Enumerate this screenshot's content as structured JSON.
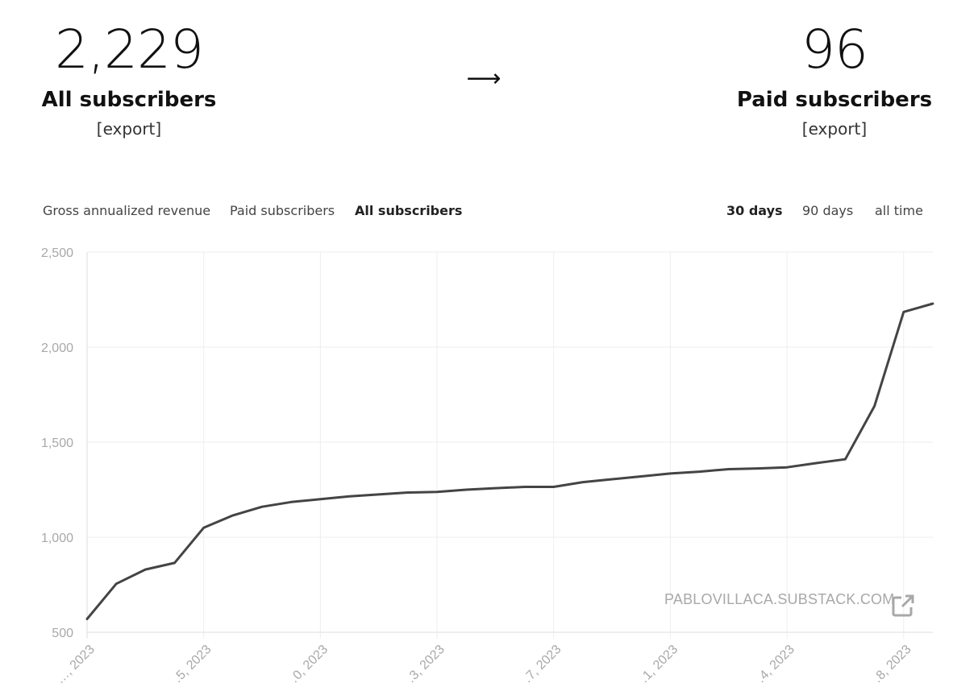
{
  "left_stat": {
    "value": "2,229",
    "label": "All subscribers",
    "export": "[export]"
  },
  "arrow": "⟶",
  "right_stat": {
    "value": "96",
    "label": "Paid subscribers",
    "export": "[export]"
  },
  "metric_tabs": [
    {
      "label": "Gross annualized revenue",
      "active": false
    },
    {
      "label": "Paid subscribers",
      "active": false
    },
    {
      "label": "All subscribers",
      "active": true
    }
  ],
  "range_tabs": [
    {
      "label": "30 days",
      "active": true
    },
    {
      "label": "90 days",
      "active": false
    },
    {
      "label": "all time",
      "active": false
    }
  ],
  "watermark": {
    "text": "PABLOVILLACA.SUBSTACK.COM",
    "icon": "external-link-icon"
  },
  "colors": {
    "line": "#444444",
    "grid": "#eeeeee",
    "axis_text": "#a8a8a8",
    "watermark": "#a8a8a8"
  },
  "chart_data": {
    "type": "line",
    "title": "",
    "xlabel": "",
    "ylabel": "",
    "ylim": [
      500,
      2500
    ],
    "yticks": [
      "500",
      "1,000",
      "1,500",
      "2,000",
      "2,500"
    ],
    "grid": true,
    "x_tick_labels": [
      "…, 2023",
      "…5, 2023",
      "…0, 2023",
      "…3, 2023",
      "…7, 2023",
      "…1, 2023",
      "…4, 2023",
      "…8, 2023"
    ],
    "series": [
      {
        "values": [
          570,
          755,
          830,
          865,
          1050,
          1115,
          1160,
          1185,
          1200,
          1215,
          1225,
          1235,
          1238,
          1250,
          1258,
          1265,
          1265,
          1290,
          1305,
          1320,
          1335,
          1345,
          1358,
          1362,
          1368,
          1390,
          1410,
          1690,
          2185,
          2229
        ]
      }
    ]
  }
}
